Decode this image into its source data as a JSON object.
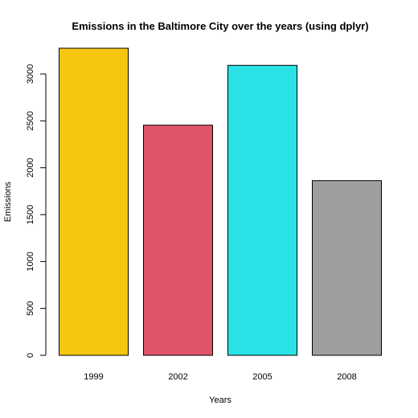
{
  "chart_data": {
    "type": "bar",
    "title": "Emissions in the Baltimore City over the years (using dplyr)",
    "xlabel": "Years",
    "ylabel": "Emissions",
    "categories": [
      "1999",
      "2002",
      "2005",
      "2008"
    ],
    "values": [
      3274.18,
      2453.92,
      3091.35,
      1862.28
    ],
    "colors": [
      "#F5C710",
      "#DF536B",
      "#28E2E5",
      "#9E9E9E"
    ],
    "ylim": [
      0,
      3300
    ],
    "yticks": [
      0,
      500,
      1000,
      1500,
      2000,
      2500,
      3000
    ],
    "grid": false,
    "legend": "none"
  }
}
